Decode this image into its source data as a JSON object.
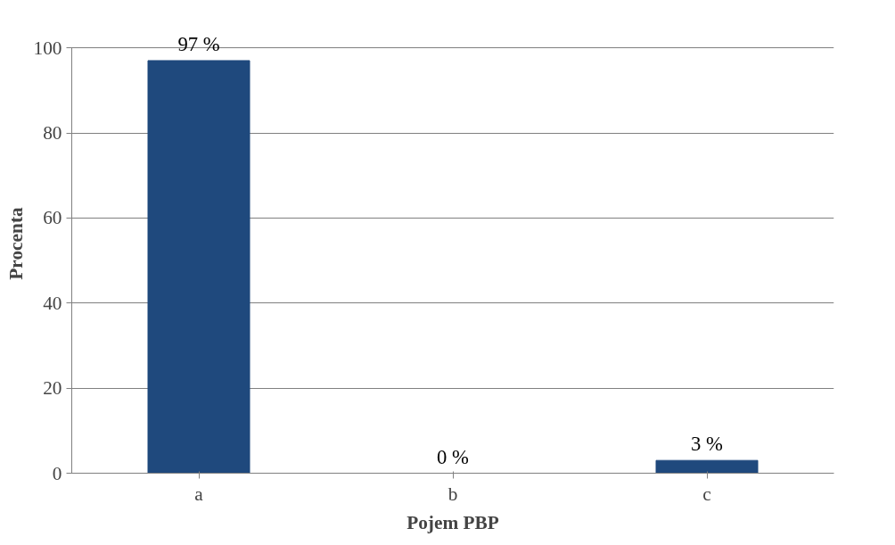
{
  "chart_data": {
    "type": "bar",
    "xlabel": "Pojem PBP",
    "ylabel": "Procenta",
    "categories": [
      "a",
      "b",
      "c"
    ],
    "values": [
      97,
      0,
      3
    ],
    "value_labels": [
      "97 %",
      "0 %",
      "3 %"
    ],
    "color": "#1f497d",
    "ylim": [
      0,
      100
    ],
    "yticks": [
      0,
      20,
      40,
      60,
      80,
      100
    ],
    "grid": "y"
  }
}
